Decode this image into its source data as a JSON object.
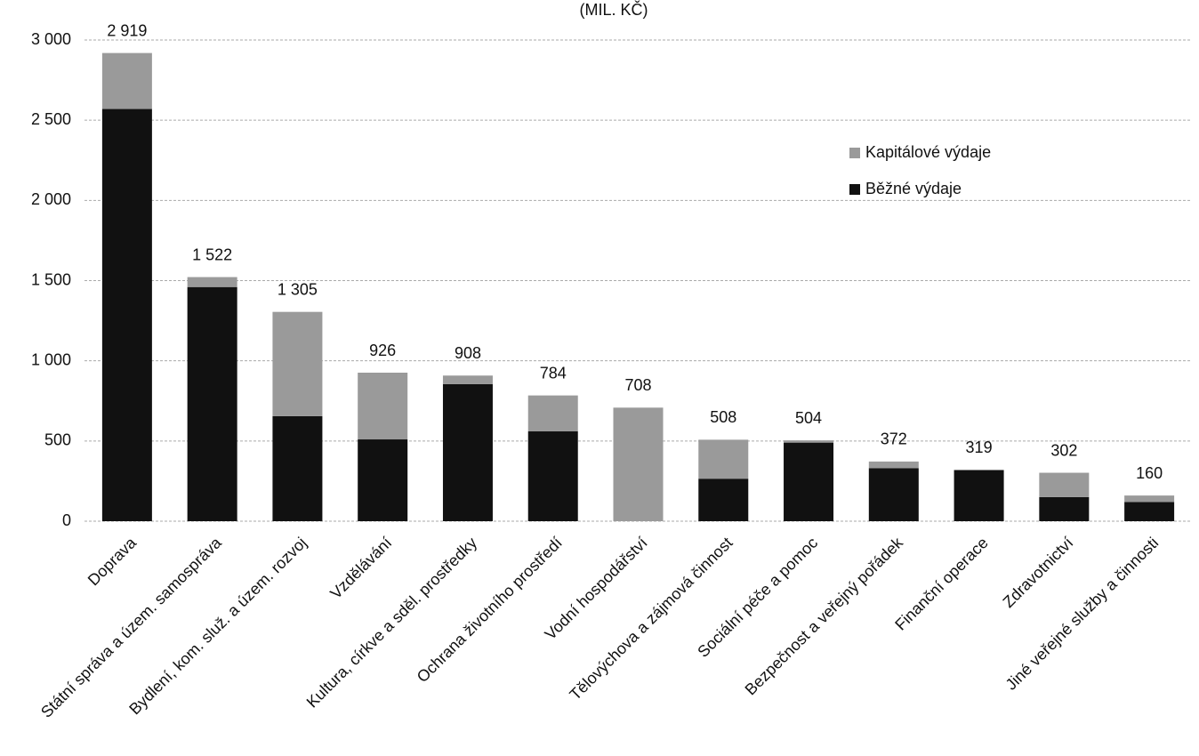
{
  "chart_data": {
    "type": "stacked_bar",
    "title": "(MIL. KČ)",
    "categories": [
      "Doprava",
      "Státní správa a územ. samospráva",
      "Bydlení, kom. služ. a územ. rozvoj",
      "Vzdělávání",
      "Kultura, církve a sděl. prostředky",
      "Ochrana životního prostředí",
      "Vodní hospodářství",
      "Tělovýchova a zájmová činnost",
      "Sociální péče a pomoc",
      "Bezpečnost a veřejný pořádek",
      "Finanční operace",
      "Zdravotnictví",
      "Jiné veřejné služby a činnosti"
    ],
    "series": [
      {
        "name": "Běžné výdaje",
        "color": "#111111",
        "values": [
          2570,
          1460,
          655,
          510,
          855,
          560,
          0,
          265,
          490,
          330,
          319,
          150,
          120
        ]
      },
      {
        "name": "Kapitálové výdaje",
        "color": "#9a9a9a",
        "values": [
          349,
          62,
          650,
          416,
          53,
          224,
          708,
          243,
          14,
          42,
          0,
          152,
          40
        ]
      }
    ],
    "totals": [
      2919,
      1522,
      1305,
      926,
      908,
      784,
      708,
      508,
      504,
      372,
      319,
      302,
      160
    ],
    "total_labels": [
      "2 919",
      "1 522",
      "1 305",
      "926",
      "908",
      "784",
      "708",
      "508",
      "504",
      "372",
      "319",
      "302",
      "160"
    ],
    "ylim": [
      0,
      3000
    ],
    "yticks": [
      0,
      500,
      {
        "value": 1000,
        "label": "1 000"
      },
      {
        "value": 1500,
        "label": "1 500"
      },
      {
        "value": 2000,
        "label": "2 000"
      },
      {
        "value": 2500,
        "label": "2 500"
      },
      {
        "value": 3000,
        "label": "3 000"
      }
    ],
    "grid": true,
    "legend": "upper right"
  }
}
